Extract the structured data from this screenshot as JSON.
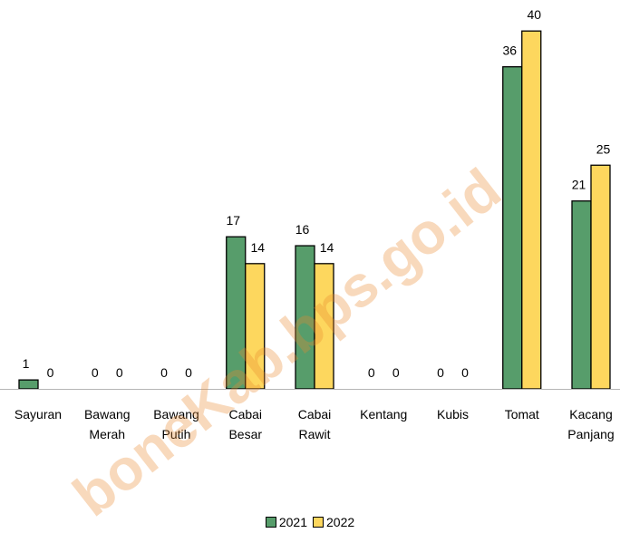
{
  "chart_data": {
    "type": "bar",
    "categories": [
      [
        "Sayuran"
      ],
      [
        "Bawang",
        "Merah"
      ],
      [
        "Bawang",
        "Putih"
      ],
      [
        "Cabai",
        "Besar"
      ],
      [
        "Cabai",
        "Rawit"
      ],
      [
        "Kentang"
      ],
      [
        "Kubis"
      ],
      [
        "Tomat"
      ],
      [
        "Kacang",
        "Panjang"
      ]
    ],
    "series": [
      {
        "name": "2021",
        "color": "#579d6b",
        "values": [
          1,
          0,
          0,
          17,
          16,
          0,
          0,
          36,
          21
        ]
      },
      {
        "name": "2022",
        "color": "#fdd75e",
        "values": [
          0,
          0,
          0,
          14,
          14,
          0,
          0,
          40,
          25
        ]
      }
    ],
    "ylim": [
      0,
      40
    ],
    "grid": false,
    "legend_position": "bottom",
    "watermark": "boneKab.bps.go.id"
  }
}
